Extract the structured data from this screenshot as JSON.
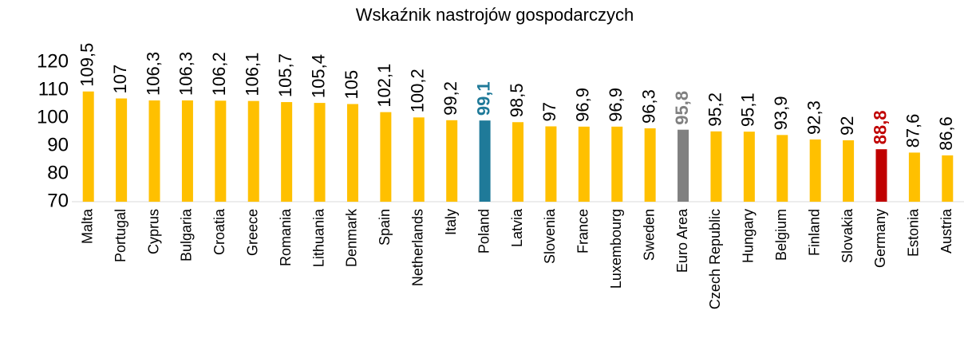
{
  "chart_data": {
    "type": "bar",
    "title": "Wskaźnik nastrojów gospodarczych",
    "categories": [
      "Malta",
      "Portugal",
      "Cyprus",
      "Bulgaria",
      "Croatia",
      "Greece",
      "Romania",
      "Lithuania",
      "Denmark",
      "Spain",
      "Netherlands",
      "Italy",
      "Poland",
      "Latvia",
      "Slovenia",
      "France",
      "Luxembourg",
      "Sweden",
      "Euro Area",
      "Czech Republic",
      "Hungary",
      "Belgium",
      "Finland",
      "Slovakia",
      "Germany",
      "Estonia",
      "Austria"
    ],
    "values": [
      109.5,
      107,
      106.3,
      106.3,
      106.2,
      106.1,
      105.7,
      105.4,
      105,
      102.1,
      100.2,
      99.2,
      99.1,
      98.5,
      97,
      96.9,
      96.9,
      96.3,
      95.8,
      95.2,
      95.1,
      93.9,
      92.3,
      92,
      88.8,
      87.6,
      86.6
    ],
    "value_labels": [
      "109,5",
      "107",
      "106,3",
      "106,3",
      "106,2",
      "106,1",
      "105,7",
      "105,4",
      "105",
      "102,1",
      "100,2",
      "99,2",
      "99,1",
      "98,5",
      "97",
      "96,9",
      "96,9",
      "96,3",
      "95,8",
      "95,2",
      "95,1",
      "93,9",
      "92,3",
      "92",
      "88,8",
      "87,6",
      "86,6"
    ],
    "color": "#ffc000",
    "bar_colors": [
      "#ffc000",
      "#ffc000",
      "#ffc000",
      "#ffc000",
      "#ffc000",
      "#ffc000",
      "#ffc000",
      "#ffc000",
      "#ffc000",
      "#ffc000",
      "#ffc000",
      "#ffc000",
      "#1f7a99",
      "#ffc000",
      "#ffc000",
      "#ffc000",
      "#ffc000",
      "#ffc000",
      "#808080",
      "#ffc000",
      "#ffc000",
      "#ffc000",
      "#ffc000",
      "#ffc000",
      "#c00000",
      "#ffc000",
      "#ffc000"
    ],
    "ylim": [
      70,
      120
    ],
    "yticks": [
      70,
      80,
      90,
      100,
      110,
      120
    ],
    "grid": false
  }
}
